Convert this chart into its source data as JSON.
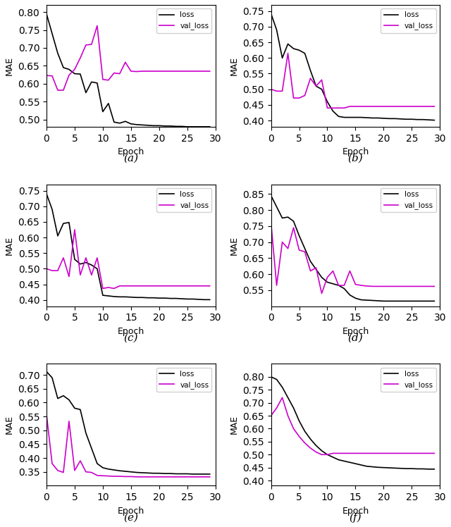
{
  "subplots": [
    {
      "label": "(a)",
      "ylim": [
        0.48,
        0.82
      ],
      "yticks": [
        0.5,
        0.55,
        0.6,
        0.65,
        0.7,
        0.75,
        0.8
      ],
      "loss": [
        0.795,
        0.74,
        0.685,
        0.645,
        0.64,
        0.628,
        0.627,
        0.575,
        0.605,
        0.602,
        0.522,
        0.545,
        0.493,
        0.49,
        0.495,
        0.488,
        0.486,
        0.485,
        0.484,
        0.483,
        0.483,
        0.482,
        0.482,
        0.481,
        0.481,
        0.48,
        0.48,
        0.48,
        0.48,
        0.48
      ],
      "val_loss": [
        0.623,
        0.622,
        0.582,
        0.582,
        0.624,
        0.64,
        0.672,
        0.708,
        0.71,
        0.762,
        0.612,
        0.61,
        0.63,
        0.628,
        0.66,
        0.635,
        0.634,
        0.635,
        0.635,
        0.635,
        0.635,
        0.635,
        0.635,
        0.635,
        0.635,
        0.635,
        0.635,
        0.635,
        0.635,
        0.635
      ]
    },
    {
      "label": "(b)",
      "ylim": [
        0.38,
        0.77
      ],
      "yticks": [
        0.4,
        0.45,
        0.5,
        0.55,
        0.6,
        0.65,
        0.7,
        0.75
      ],
      "loss": [
        0.742,
        0.69,
        0.6,
        0.645,
        0.63,
        0.625,
        0.615,
        0.56,
        0.51,
        0.5,
        0.46,
        0.43,
        0.413,
        0.41,
        0.41,
        0.41,
        0.41,
        0.409,
        0.408,
        0.408,
        0.407,
        0.406,
        0.406,
        0.405,
        0.404,
        0.404,
        0.403,
        0.403,
        0.402,
        0.401
      ],
      "val_loss": [
        0.5,
        0.494,
        0.494,
        0.615,
        0.472,
        0.472,
        0.48,
        0.535,
        0.51,
        0.53,
        0.44,
        0.44,
        0.44,
        0.44,
        0.445,
        0.445,
        0.445,
        0.445,
        0.445,
        0.445,
        0.445,
        0.445,
        0.445,
        0.445,
        0.445,
        0.445,
        0.445,
        0.445,
        0.445,
        0.445
      ]
    },
    {
      "label": "(c)",
      "ylim": [
        0.38,
        0.77
      ],
      "yticks": [
        0.4,
        0.45,
        0.5,
        0.55,
        0.6,
        0.65,
        0.7,
        0.75
      ],
      "loss": [
        0.74,
        0.69,
        0.605,
        0.645,
        0.648,
        0.53,
        0.515,
        0.52,
        0.512,
        0.5,
        0.415,
        0.413,
        0.411,
        0.41,
        0.41,
        0.409,
        0.408,
        0.408,
        0.407,
        0.407,
        0.406,
        0.406,
        0.405,
        0.405,
        0.404,
        0.403,
        0.403,
        0.402,
        0.401,
        0.401
      ],
      "val_loss": [
        0.5,
        0.494,
        0.494,
        0.535,
        0.475,
        0.625,
        0.48,
        0.535,
        0.48,
        0.535,
        0.437,
        0.44,
        0.437,
        0.445,
        0.445,
        0.445,
        0.445,
        0.445,
        0.445,
        0.445,
        0.445,
        0.445,
        0.445,
        0.445,
        0.445,
        0.445,
        0.445,
        0.445,
        0.445,
        0.445
      ]
    },
    {
      "label": "(d)",
      "ylim": [
        0.5,
        0.88
      ],
      "yticks": [
        0.55,
        0.6,
        0.65,
        0.7,
        0.75,
        0.8,
        0.85
      ],
      "loss": [
        0.845,
        0.81,
        0.775,
        0.778,
        0.765,
        0.72,
        0.68,
        0.64,
        0.615,
        0.59,
        0.575,
        0.57,
        0.565,
        0.555,
        0.535,
        0.525,
        0.52,
        0.519,
        0.518,
        0.517,
        0.516,
        0.516,
        0.516,
        0.516,
        0.516,
        0.516,
        0.516,
        0.516,
        0.516,
        0.516
      ],
      "val_loss": [
        0.76,
        0.565,
        0.7,
        0.68,
        0.745,
        0.675,
        0.67,
        0.61,
        0.62,
        0.54,
        0.59,
        0.61,
        0.565,
        0.565,
        0.61,
        0.568,
        0.565,
        0.563,
        0.562,
        0.562,
        0.562,
        0.562,
        0.562,
        0.562,
        0.562,
        0.562,
        0.562,
        0.562,
        0.562,
        0.562
      ]
    },
    {
      "label": "(e)",
      "ylim": [
        0.3,
        0.74
      ],
      "yticks": [
        0.35,
        0.4,
        0.45,
        0.5,
        0.55,
        0.6,
        0.65,
        0.7
      ],
      "loss": [
        0.712,
        0.69,
        0.615,
        0.625,
        0.61,
        0.58,
        0.575,
        0.49,
        0.435,
        0.38,
        0.365,
        0.36,
        0.357,
        0.354,
        0.352,
        0.35,
        0.348,
        0.347,
        0.346,
        0.345,
        0.345,
        0.344,
        0.344,
        0.343,
        0.343,
        0.343,
        0.342,
        0.342,
        0.342,
        0.342
      ],
      "val_loss": [
        0.558,
        0.38,
        0.355,
        0.348,
        0.533,
        0.355,
        0.39,
        0.35,
        0.348,
        0.337,
        0.336,
        0.335,
        0.334,
        0.334,
        0.333,
        0.333,
        0.332,
        0.332,
        0.332,
        0.332,
        0.332,
        0.332,
        0.332,
        0.332,
        0.332,
        0.332,
        0.332,
        0.332,
        0.332,
        0.332
      ]
    },
    {
      "label": "(f)",
      "ylim": [
        0.38,
        0.85
      ],
      "yticks": [
        0.4,
        0.45,
        0.5,
        0.55,
        0.6,
        0.65,
        0.7,
        0.75,
        0.8
      ],
      "loss": [
        0.8,
        0.79,
        0.76,
        0.72,
        0.68,
        0.63,
        0.59,
        0.56,
        0.535,
        0.515,
        0.5,
        0.49,
        0.48,
        0.475,
        0.47,
        0.465,
        0.46,
        0.455,
        0.453,
        0.451,
        0.45,
        0.449,
        0.448,
        0.447,
        0.446,
        0.446,
        0.445,
        0.445,
        0.444,
        0.444
      ],
      "val_loss": [
        0.65,
        0.68,
        0.72,
        0.65,
        0.6,
        0.57,
        0.545,
        0.525,
        0.51,
        0.5,
        0.5,
        0.505,
        0.505,
        0.505,
        0.505,
        0.505,
        0.505,
        0.505,
        0.505,
        0.505,
        0.505,
        0.505,
        0.505,
        0.505,
        0.505,
        0.505,
        0.505,
        0.505,
        0.505,
        0.505
      ]
    }
  ],
  "loss_color": "#000000",
  "val_loss_color": "#cc00cc",
  "xlabel": "Epoch",
  "ylabel": "MAE",
  "xticks": [
    0,
    5,
    10,
    15,
    20,
    25,
    30
  ],
  "xlim": [
    0,
    30
  ],
  "linewidth": 1.2,
  "figsize": [
    6.4,
    7.48
  ],
  "dpi": 100
}
